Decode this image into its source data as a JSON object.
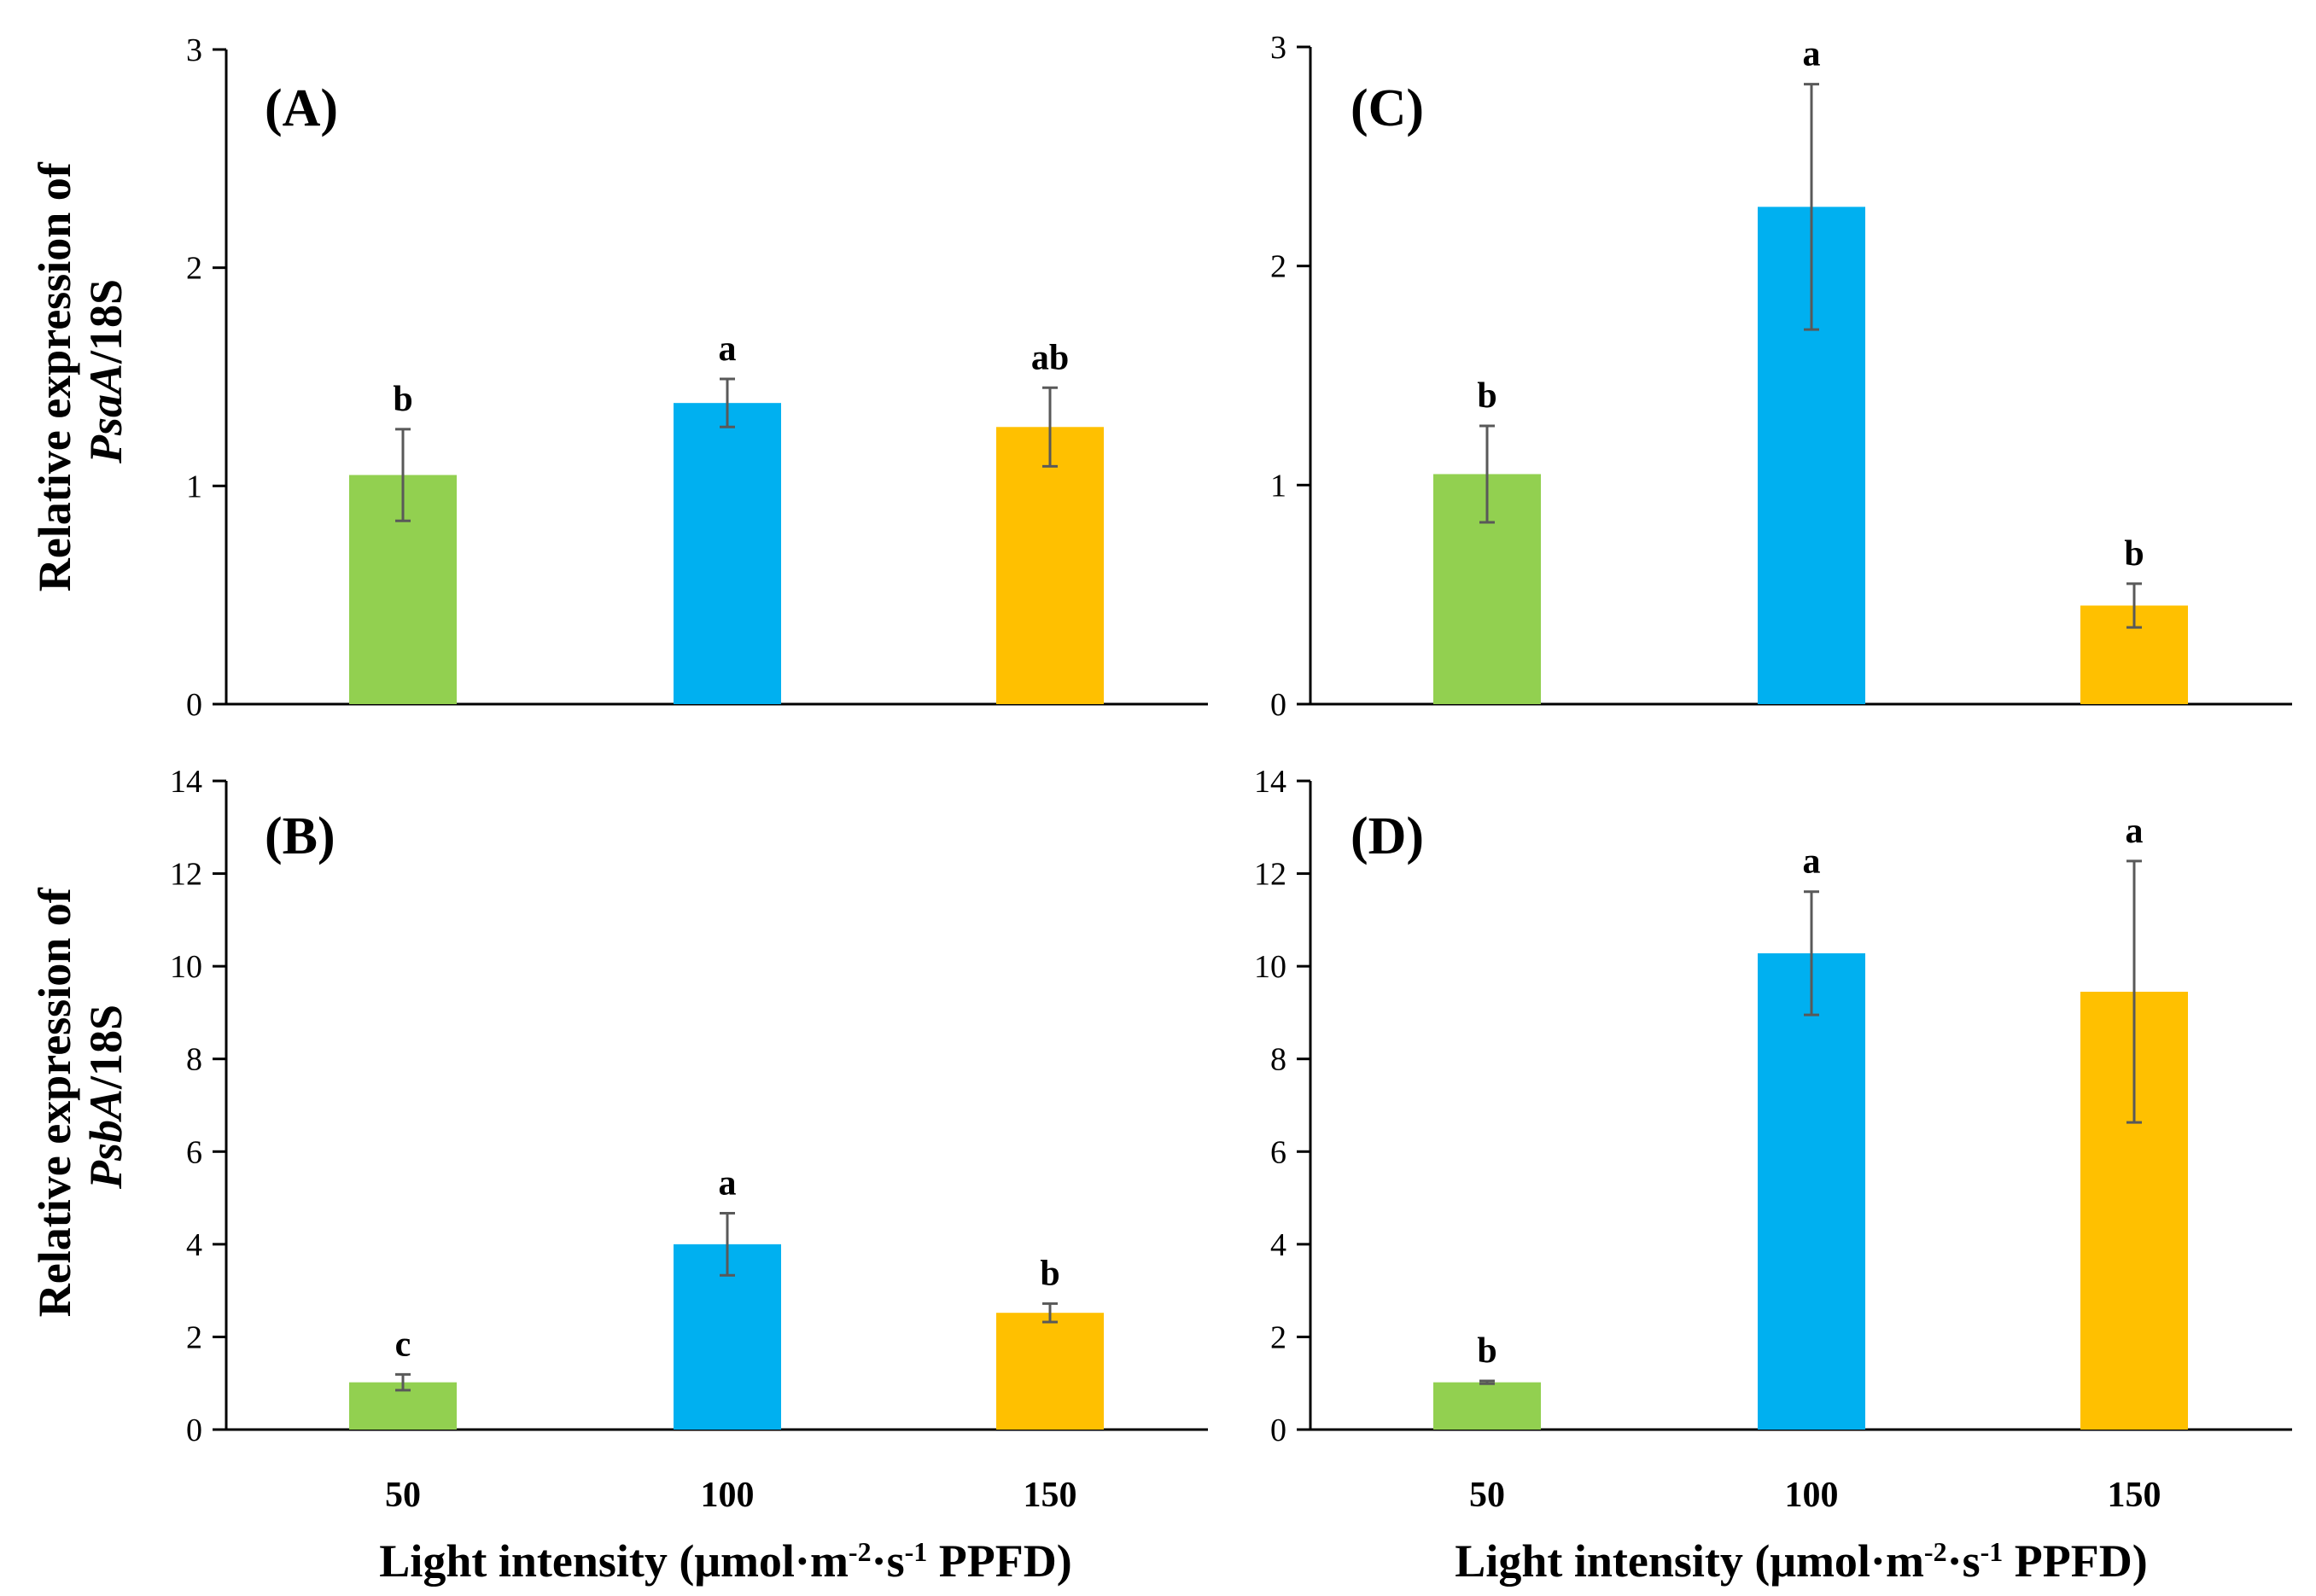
{
  "colors": {
    "g50": "#92d050",
    "g100": "#00b0f0",
    "g150": "#ffc000",
    "axis": "#000000",
    "error": "#595959"
  },
  "ylabel_top": {
    "line1": "Relative expression of",
    "gene": "PsaA",
    "suffix": "/18S"
  },
  "ylabel_bottom": {
    "line1": "Relative expression of",
    "gene": "PsbA",
    "suffix": "/18S"
  },
  "xlabel": {
    "pre": "Light intensity (μmol·m",
    "sup1": "-2",
    "mid": "·s",
    "sup2": "-1",
    "post": " PPFD)"
  },
  "chart_data": [
    {
      "type": "bar",
      "panel": "(A)",
      "gene": "PsaA",
      "categories": [
        "50",
        "100",
        "150"
      ],
      "values": [
        1.05,
        1.38,
        1.27
      ],
      "errors": [
        0.21,
        0.11,
        0.18
      ],
      "letters": [
        "b",
        "a",
        "ab"
      ],
      "ylim": [
        0,
        3
      ],
      "yticks": [
        0,
        1,
        2,
        3
      ]
    },
    {
      "type": "bar",
      "panel": "(C)",
      "gene": "PsaA",
      "categories": [
        "50",
        "100",
        "150"
      ],
      "values": [
        1.05,
        2.27,
        0.45
      ],
      "errors": [
        0.22,
        0.56,
        0.1
      ],
      "letters": [
        "b",
        "a",
        "b"
      ],
      "ylim": [
        0,
        3
      ],
      "yticks": [
        0,
        1,
        2,
        3
      ]
    },
    {
      "type": "bar",
      "panel": "(B)",
      "gene": "PsbA",
      "categories": [
        "50",
        "100",
        "150"
      ],
      "values": [
        1.02,
        4.0,
        2.52
      ],
      "errors": [
        0.17,
        0.67,
        0.2
      ],
      "letters": [
        "c",
        "a",
        "b"
      ],
      "ylim": [
        0,
        14
      ],
      "yticks": [
        0,
        2,
        4,
        6,
        8,
        10,
        12,
        14
      ]
    },
    {
      "type": "bar",
      "panel": "(D)",
      "gene": "PsbA",
      "categories": [
        "50",
        "100",
        "150"
      ],
      "values": [
        1.02,
        10.28,
        9.45
      ],
      "errors": [
        0.03,
        1.33,
        2.82
      ],
      "letters": [
        "b",
        "a",
        "a"
      ],
      "ylim": [
        0,
        14
      ],
      "yticks": [
        0,
        2,
        4,
        6,
        8,
        10,
        12,
        14
      ]
    }
  ]
}
